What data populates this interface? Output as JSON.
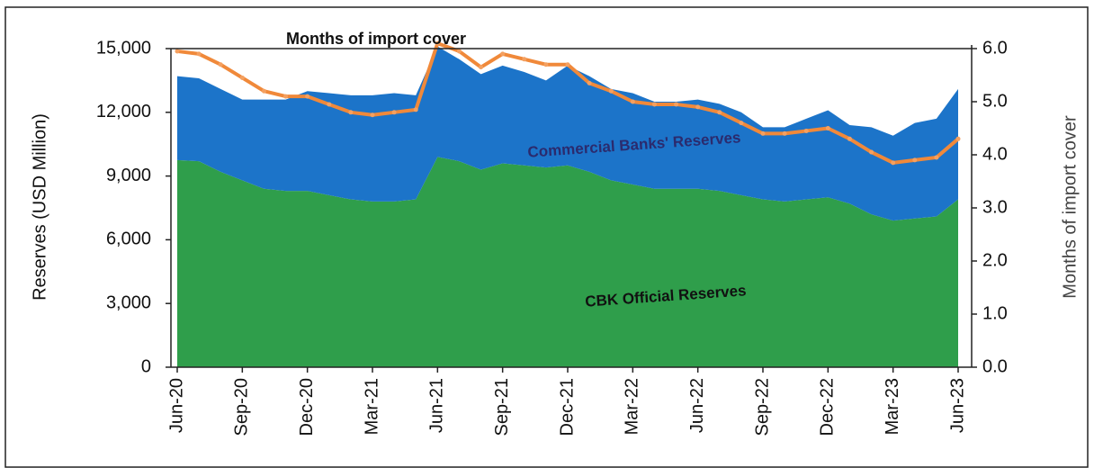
{
  "chart_data": {
    "type": "stacked_area_line",
    "categories": [
      "Jun-20",
      null,
      null,
      "Sep-20",
      null,
      null,
      "Dec-20",
      null,
      null,
      "Mar-21",
      null,
      null,
      "Jun-21",
      null,
      null,
      "Sep-21",
      null,
      null,
      "Dec-21",
      null,
      null,
      "Mar-22",
      null,
      null,
      "Jun-22",
      null,
      null,
      "Sep-22",
      null,
      null,
      "Dec-22",
      null,
      null,
      "Mar-23",
      null,
      null,
      "Jun-23"
    ],
    "series": [
      {
        "name": "CBK Official Reserves",
        "color": "#2f9e4b",
        "values": [
          9750,
          9700,
          9200,
          8800,
          8400,
          8300,
          8300,
          8100,
          7900,
          7800,
          7800,
          7900,
          9900,
          9700,
          9300,
          9600,
          9500,
          9400,
          9500,
          9200,
          8800,
          8600,
          8400,
          8400,
          8400,
          8300,
          8100,
          7900,
          7800,
          7900,
          8000,
          7700,
          7200,
          6900,
          7000,
          7100,
          7900
        ]
      },
      {
        "name": "Commercial Banks' Reserves",
        "color": "#1c74c9",
        "values": [
          3950,
          3900,
          3900,
          3800,
          4200,
          4300,
          4700,
          4800,
          4900,
          5000,
          5100,
          4900,
          5200,
          4800,
          4500,
          4600,
          4400,
          4100,
          4700,
          4500,
          4300,
          4300,
          4100,
          4100,
          4200,
          4100,
          3900,
          3400,
          3500,
          3800,
          4100,
          3700,
          4100,
          4000,
          4500,
          4600,
          5200
        ]
      },
      {
        "name": "Months of import cover",
        "color": "#f0893a",
        "axis": "y2",
        "values": [
          5.95,
          5.9,
          5.7,
          5.45,
          5.2,
          5.1,
          5.1,
          4.95,
          4.8,
          4.75,
          4.8,
          4.85,
          6.1,
          5.95,
          5.65,
          5.9,
          5.8,
          5.7,
          5.7,
          5.35,
          5.2,
          5.0,
          4.95,
          4.95,
          4.9,
          4.8,
          4.6,
          4.4,
          4.4,
          4.45,
          4.5,
          4.3,
          4.05,
          3.85,
          3.9,
          3.95,
          4.3
        ]
      }
    ],
    "y_label": "Reserves (USD Million)",
    "y2_label": "Months of import cover",
    "ylim": [
      0,
      15000
    ],
    "yticks": [
      0,
      {
        "value": 3000,
        "label": "3,000"
      },
      {
        "value": 6000,
        "label": "6,000"
      },
      {
        "value": 9000,
        "label": "9,000"
      },
      {
        "value": 12000,
        "label": "12,000"
      },
      {
        "value": 15000,
        "label": "15,000"
      }
    ],
    "y2lim": [
      0,
      6
    ],
    "y2ticks": [
      {
        "value": 0,
        "label": "0.0"
      },
      {
        "value": 1,
        "label": "1.0"
      },
      {
        "value": 2,
        "label": "2.0"
      },
      {
        "value": 3,
        "label": "3.0"
      },
      {
        "value": 4,
        "label": "4.0"
      },
      {
        "value": 5,
        "label": "5.0"
      },
      {
        "value": 6,
        "label": "6.0"
      }
    ]
  }
}
